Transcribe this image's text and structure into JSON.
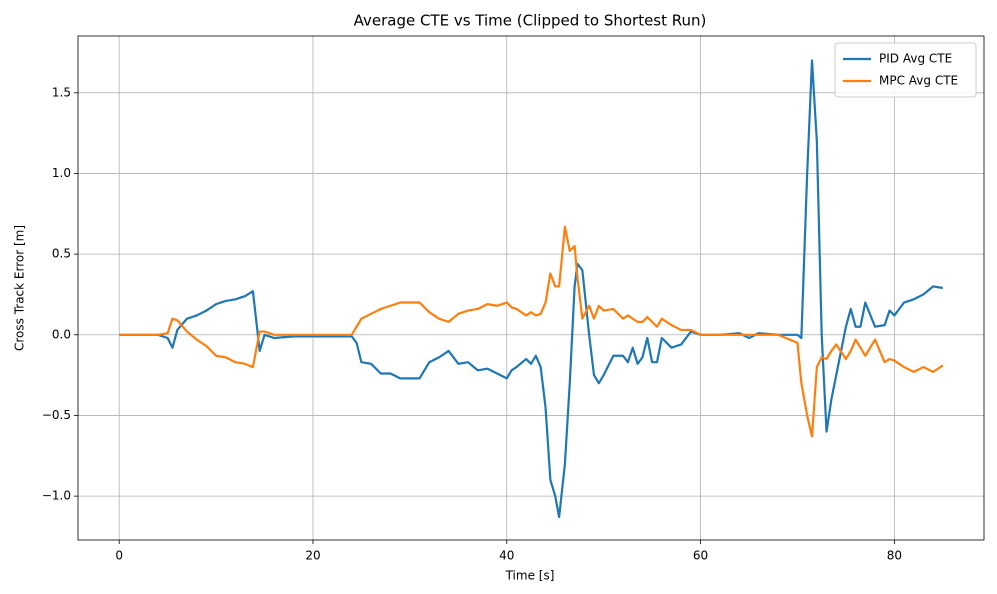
{
  "chart_data": {
    "type": "line",
    "title": "Average CTE vs Time (Clipped to Shortest Run)",
    "x_label": "Time [s]",
    "y_label": "Cross Track Error [m]",
    "x": [
      0,
      2,
      4,
      5,
      5.5,
      6,
      7,
      8,
      9,
      10,
      11,
      12,
      13,
      13.8,
      14.5,
      15,
      16,
      18,
      20,
      22,
      24,
      24.5,
      25,
      26,
      27,
      28,
      29,
      30,
      31,
      32,
      33,
      34,
      35,
      36,
      37,
      38,
      39,
      40,
      40.5,
      41,
      42,
      42.5,
      43,
      43.5,
      44,
      44.5,
      45,
      45.4,
      46,
      46.5,
      47,
      47.3,
      47.8,
      48.5,
      49,
      49.5,
      50,
      51,
      52,
      52.5,
      53,
      53.5,
      54,
      54.5,
      55,
      55.5,
      56,
      57,
      58,
      59,
      60,
      62,
      64,
      65,
      66,
      68,
      70,
      70.4,
      71,
      71.5,
      72,
      72.5,
      73,
      73.5,
      74,
      75,
      75.5,
      76,
      76.5,
      77,
      78,
      79,
      79.5,
      80,
      81,
      82,
      83,
      84,
      85
    ],
    "series": [
      {
        "name": "PID Avg CTE",
        "color": "#1f77b4",
        "values": [
          0,
          0,
          0,
          -0.02,
          -0.08,
          0.03,
          0.1,
          0.12,
          0.15,
          0.19,
          0.21,
          0.22,
          0.24,
          0.27,
          -0.1,
          0,
          -0.02,
          -0.01,
          -0.01,
          -0.01,
          -0.01,
          -0.05,
          -0.17,
          -0.18,
          -0.24,
          -0.24,
          -0.27,
          -0.27,
          -0.27,
          -0.17,
          -0.14,
          -0.1,
          -0.18,
          -0.17,
          -0.22,
          -0.21,
          -0.24,
          -0.27,
          -0.22,
          -0.2,
          -0.15,
          -0.18,
          -0.13,
          -0.2,
          -0.45,
          -0.9,
          -1.0,
          -1.13,
          -0.8,
          -0.3,
          0.3,
          0.44,
          0.4,
          0,
          -0.25,
          -0.3,
          -0.25,
          -0.13,
          -0.13,
          -0.17,
          -0.08,
          -0.18,
          -0.14,
          -0.02,
          -0.17,
          -0.17,
          -0.02,
          -0.08,
          -0.06,
          0.02,
          0,
          0,
          0.01,
          -0.02,
          0.01,
          0,
          0,
          -0.02,
          1.0,
          1.7,
          1.2,
          0,
          -0.6,
          -0.4,
          -0.25,
          0.05,
          0.16,
          0.05,
          0.05,
          0.2,
          0.05,
          0.06,
          0.15,
          0.12,
          0.2,
          0.22,
          0.25,
          0.3,
          0.29
        ]
      },
      {
        "name": "MPC Avg CTE",
        "color": "#ff7f0e",
        "values": [
          0,
          0,
          0,
          0.01,
          0.1,
          0.09,
          0.02,
          -0.03,
          -0.07,
          -0.13,
          -0.14,
          -0.17,
          -0.18,
          -0.2,
          0.02,
          0.02,
          0,
          0,
          0,
          0,
          0,
          0.05,
          0.1,
          0.13,
          0.16,
          0.18,
          0.2,
          0.2,
          0.2,
          0.14,
          0.1,
          0.08,
          0.13,
          0.15,
          0.16,
          0.19,
          0.18,
          0.2,
          0.17,
          0.16,
          0.12,
          0.14,
          0.12,
          0.13,
          0.2,
          0.38,
          0.3,
          0.3,
          0.67,
          0.52,
          0.55,
          0.35,
          0.1,
          0.18,
          0.1,
          0.18,
          0.15,
          0.16,
          0.1,
          0.12,
          0.1,
          0.08,
          0.08,
          0.11,
          0.08,
          0.05,
          0.1,
          0.06,
          0.03,
          0.03,
          0,
          0,
          0,
          0,
          0,
          0,
          -0.05,
          -0.3,
          -0.5,
          -0.63,
          -0.2,
          -0.14,
          -0.15,
          -0.1,
          -0.06,
          -0.15,
          -0.1,
          -0.03,
          -0.08,
          -0.13,
          -0.03,
          -0.17,
          -0.15,
          -0.16,
          -0.2,
          -0.23,
          -0.2,
          -0.23,
          -0.19
        ]
      }
    ],
    "xlim": [
      -4.25,
      89.25
    ],
    "ylim": [
      -1.272,
      1.852
    ],
    "xticks": [
      0,
      20,
      40,
      60,
      80
    ],
    "yticks": [
      {
        "value": -1.0,
        "label": "−1.0"
      },
      {
        "value": -0.5,
        "label": "−0.5"
      },
      {
        "value": 0,
        "label": "0.0"
      },
      {
        "value": 0.5,
        "label": "0.5"
      },
      {
        "value": 1.0,
        "label": "1.0"
      },
      {
        "value": 1.5,
        "label": "1.5"
      }
    ],
    "grid": true,
    "legend": "upper right"
  }
}
